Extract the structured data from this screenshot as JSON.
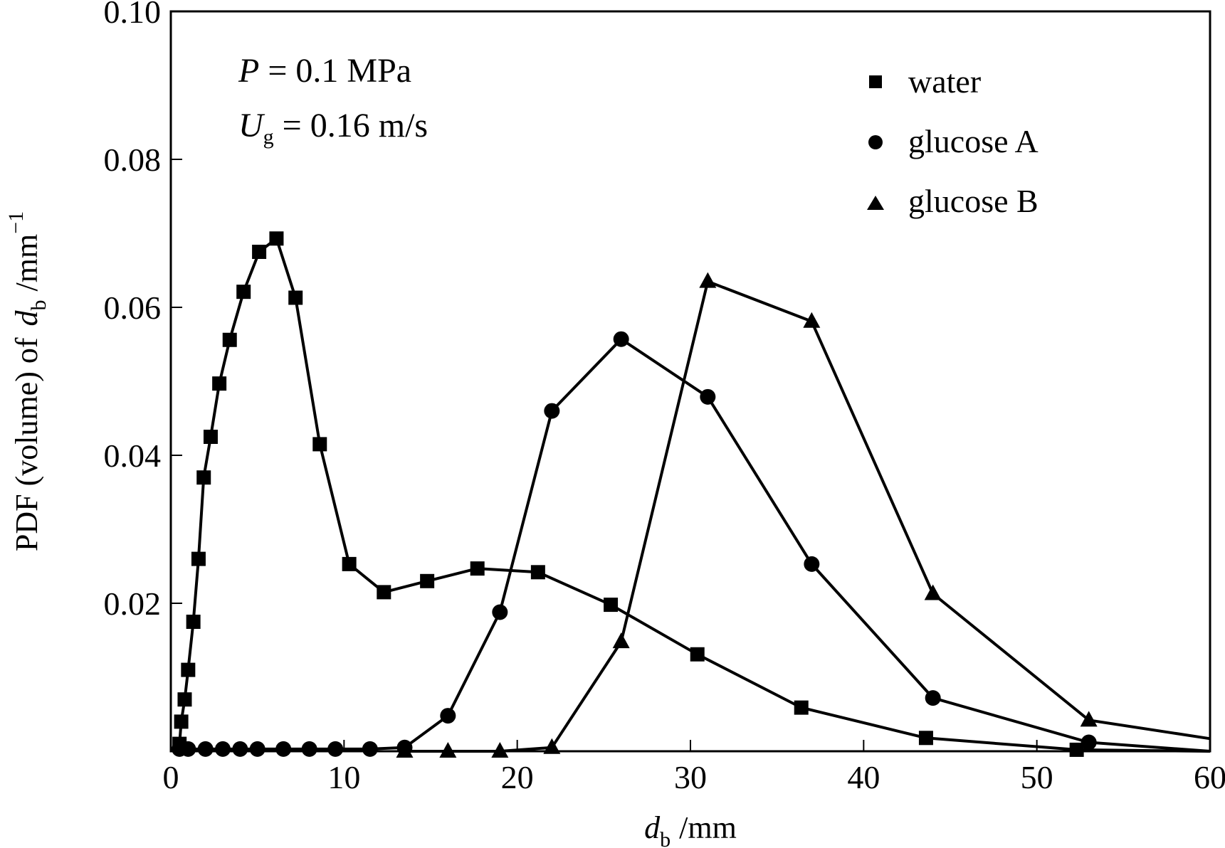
{
  "chart_data": {
    "type": "line",
    "xlabel": {
      "symbol": "d",
      "subscript": "b",
      "unit": "/mm"
    },
    "ylabel": {
      "prefix": "PDF (volume) of",
      "symbol": "d",
      "subscript": "b",
      "unit": "/mm",
      "superscript": "−1"
    },
    "xlim": [
      0,
      60
    ],
    "ylim": [
      0,
      0.1
    ],
    "xticks": [
      0,
      10,
      20,
      30,
      40,
      50,
      60
    ],
    "xtick_labels": [
      "0",
      "10",
      "20",
      "30",
      "40",
      "50",
      "60"
    ],
    "yticks": [
      0.02,
      0.04,
      0.06,
      0.08,
      0.1
    ],
    "ytick_labels": [
      "0.02",
      "0.04",
      "0.06",
      "0.08",
      "0.10"
    ],
    "grid": false,
    "legend_position": "top-right",
    "annotations": {
      "line1": {
        "symbol": "P",
        "text": " = 0.1 MPa"
      },
      "line2": {
        "symbol": "U",
        "subscript": "g",
        "text": " = 0.16 m/s"
      }
    },
    "series": [
      {
        "name": "water",
        "marker": "square",
        "x": [
          0.5,
          0.6,
          0.8,
          1.0,
          1.3,
          1.6,
          1.9,
          2.3,
          2.8,
          3.4,
          4.2,
          5.1,
          6.1,
          7.2,
          8.6,
          10.3,
          12.3,
          14.8,
          17.7,
          21.2,
          25.4,
          30.4,
          36.4,
          43.6,
          52.3,
          60.0
        ],
        "y": [
          0.001,
          0.004,
          0.007,
          0.011,
          0.0175,
          0.026,
          0.037,
          0.0425,
          0.0497,
          0.0556,
          0.0621,
          0.0675,
          0.0693,
          0.0613,
          0.0415,
          0.0253,
          0.0215,
          0.023,
          0.0247,
          0.0242,
          0.0198,
          0.0131,
          0.0059,
          0.0018,
          0.0002,
          0.0
        ]
      },
      {
        "name": "glucose A",
        "marker": "circle",
        "x": [
          0.5,
          1.0,
          2.0,
          3.0,
          4.0,
          5.0,
          6.5,
          8.0,
          9.5,
          11.5,
          13.5,
          16.0,
          19.0,
          22.0,
          26.0,
          31.0,
          37.0,
          44.0,
          53.0,
          60.0
        ],
        "y": [
          0.0003,
          0.0003,
          0.0003,
          0.0003,
          0.0003,
          0.0003,
          0.0003,
          0.0003,
          0.0003,
          0.0003,
          0.0005,
          0.0048,
          0.0188,
          0.046,
          0.0557,
          0.0479,
          0.0253,
          0.0072,
          0.0012,
          0.0
        ]
      },
      {
        "name": "glucose B",
        "marker": "triangle",
        "x": [
          13.5,
          16.0,
          19.0,
          22.0,
          26.0,
          31.0,
          37.0,
          44.0,
          53.0,
          60.0
        ],
        "y": [
          0.0,
          0.0,
          0.0,
          0.0005,
          0.0148,
          0.0635,
          0.0581,
          0.0213,
          0.0042,
          0.0017
        ]
      }
    ]
  }
}
